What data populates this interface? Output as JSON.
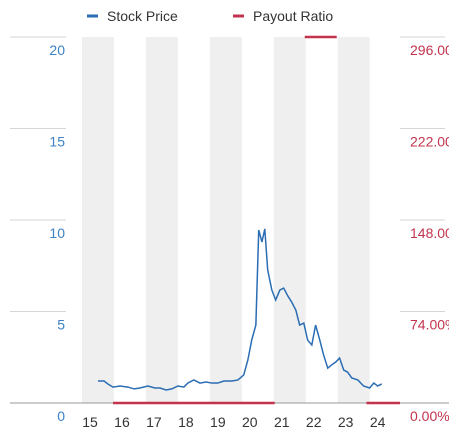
{
  "chart_data": {
    "type": "line",
    "xlim": [
      2015,
      2024.95
    ],
    "xticks": [
      {
        "value": 2015,
        "label": "15"
      },
      {
        "value": 2016,
        "label": "16"
      },
      {
        "value": 2017,
        "label": "17"
      },
      {
        "value": 2018,
        "label": "18"
      },
      {
        "value": 2019,
        "label": "19"
      },
      {
        "value": 2020,
        "label": "20"
      },
      {
        "value": 2021,
        "label": "21"
      },
      {
        "value": 2022,
        "label": "22"
      },
      {
        "value": 2023,
        "label": "23"
      },
      {
        "value": 2024,
        "label": "24"
      }
    ],
    "ylim": [
      0,
      20
    ],
    "yticks": [
      0,
      5,
      10,
      15,
      20
    ],
    "y2lim": [
      0,
      296
    ],
    "y2ticks": [
      {
        "value": 0,
        "label": "0.00%"
      },
      {
        "value": 74,
        "label": "74.00%"
      },
      {
        "value": 148,
        "label": "148.00%"
      },
      {
        "value": 222,
        "label": "222.00%"
      },
      {
        "value": 296,
        "label": "296.00%"
      }
    ],
    "shaded_columns": true,
    "series": [
      {
        "name": "Stock Price",
        "color": "#2a6db3",
        "x": [
          2015.5,
          2015.69,
          2015.81,
          2015.97,
          2016.19,
          2016.44,
          2016.63,
          2016.81,
          2017.06,
          2017.28,
          2017.44,
          2017.63,
          2017.81,
          2018.0,
          2018.19,
          2018.31,
          2018.5,
          2018.69,
          2018.88,
          2019.06,
          2019.25,
          2019.44,
          2019.69,
          2019.88,
          2020.06,
          2020.19,
          2020.31,
          2020.44,
          2020.53,
          2020.63,
          2020.72,
          2020.81,
          2020.94,
          2021.06,
          2021.19,
          2021.31,
          2021.44,
          2021.56,
          2021.69,
          2021.81,
          2021.94,
          2022.06,
          2022.19,
          2022.31,
          2022.44,
          2022.56,
          2022.69,
          2022.81,
          2022.94,
          2023.06,
          2023.19,
          2023.31,
          2023.44,
          2023.63,
          2023.81,
          2024.0,
          2024.13,
          2024.25,
          2024.38
        ],
        "values": [
          1.2,
          1.2,
          1.04,
          0.87,
          0.93,
          0.87,
          0.77,
          0.82,
          0.93,
          0.82,
          0.82,
          0.71,
          0.77,
          0.93,
          0.87,
          1.09,
          1.26,
          1.09,
          1.15,
          1.09,
          1.09,
          1.2,
          1.2,
          1.26,
          1.53,
          2.35,
          3.44,
          4.26,
          9.45,
          8.8,
          9.51,
          7.27,
          6.17,
          5.63,
          6.17,
          6.28,
          5.85,
          5.52,
          5.08,
          4.26,
          4.37,
          3.44,
          3.17,
          4.26,
          3.44,
          2.62,
          1.91,
          2.08,
          2.24,
          2.46,
          1.8,
          1.69,
          1.37,
          1.26,
          0.93,
          0.82,
          1.09,
          0.93,
          1.04
        ]
      },
      {
        "name": "Payout Ratio",
        "color": "#c2344d",
        "axis": "y2",
        "x": [
          2015.97,
          2021.03,
          2021.5,
          2021.97,
          2022.97,
          2023.5,
          2023.9,
          2024.95
        ],
        "values": [
          0,
          0,
          null,
          296,
          296,
          null,
          0,
          0
        ]
      }
    ]
  }
}
